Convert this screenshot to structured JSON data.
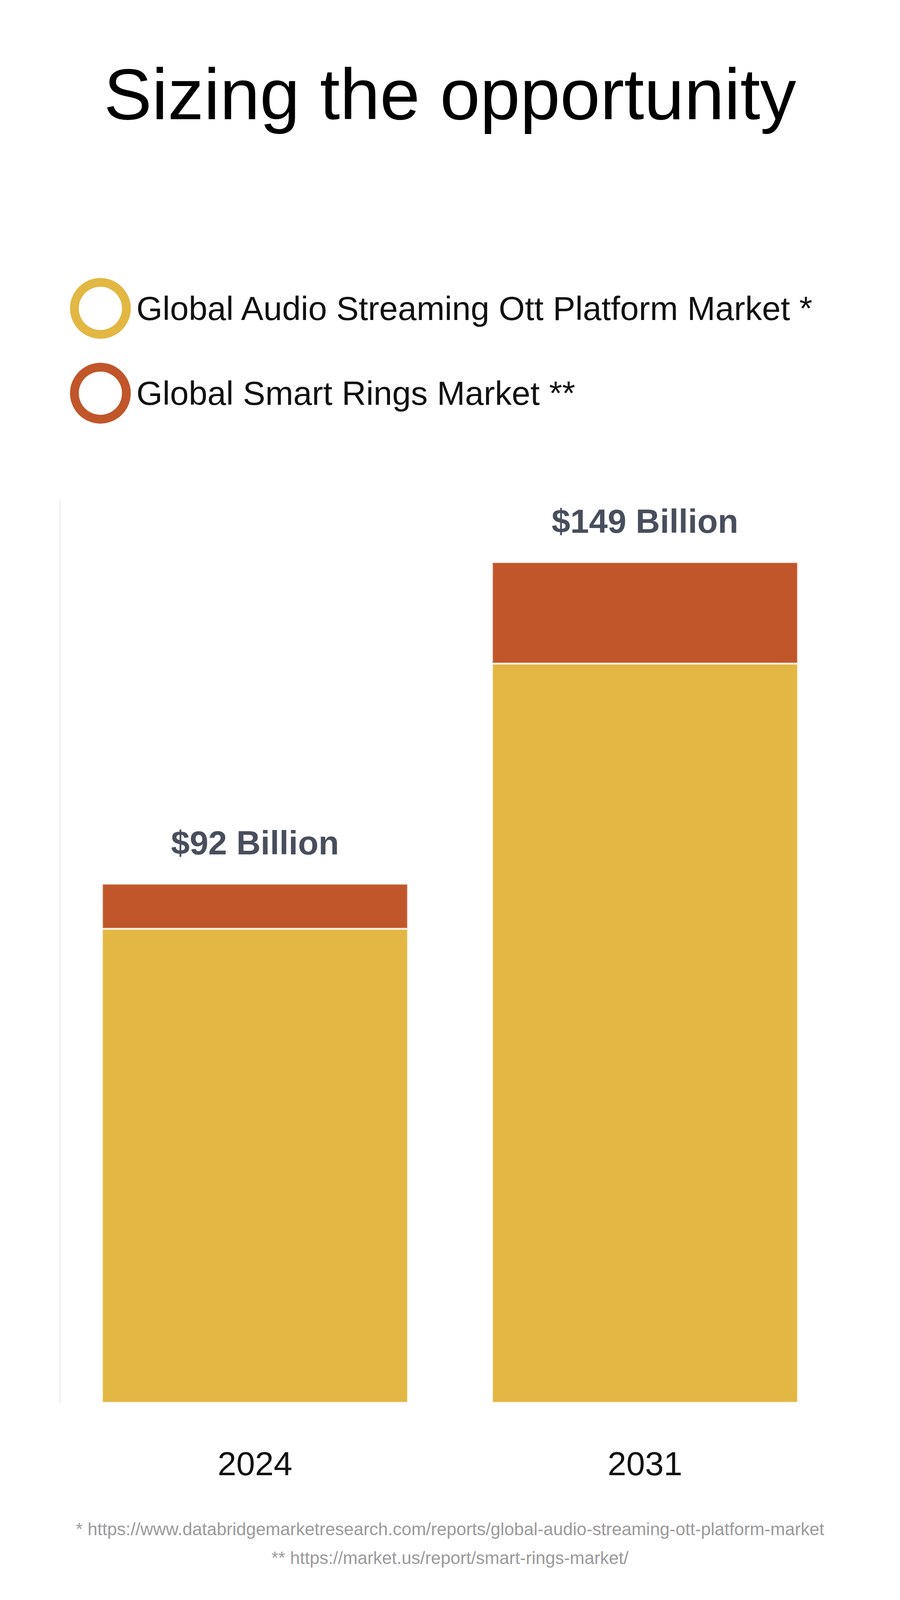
{
  "chart_data": {
    "type": "bar",
    "title": "Sizing the opportunity",
    "categories": [
      "2024",
      "2031"
    ],
    "series": [
      {
        "name": "Global Audio Streaming Ott Platform Market *",
        "color": "#E2B743",
        "values": [
          84,
          131
        ]
      },
      {
        "name": "Global Smart Rings Market **",
        "color": "#C0562A",
        "values": [
          8,
          18
        ]
      }
    ],
    "totals": [
      92,
      149
    ],
    "total_labels": [
      "$92 Billion",
      "$149 Billion"
    ],
    "footnotes": [
      "* https://www.databridgemarketresearch.com/reports/global-audio-streaming-ott-platform-market",
      "** https://market.us/report/smart-rings-market/"
    ],
    "stacked": true,
    "legend": "top-left",
    "grid": false,
    "tick_labels": "x",
    "ylim": [
      0,
      160
    ],
    "yticks": []
  }
}
